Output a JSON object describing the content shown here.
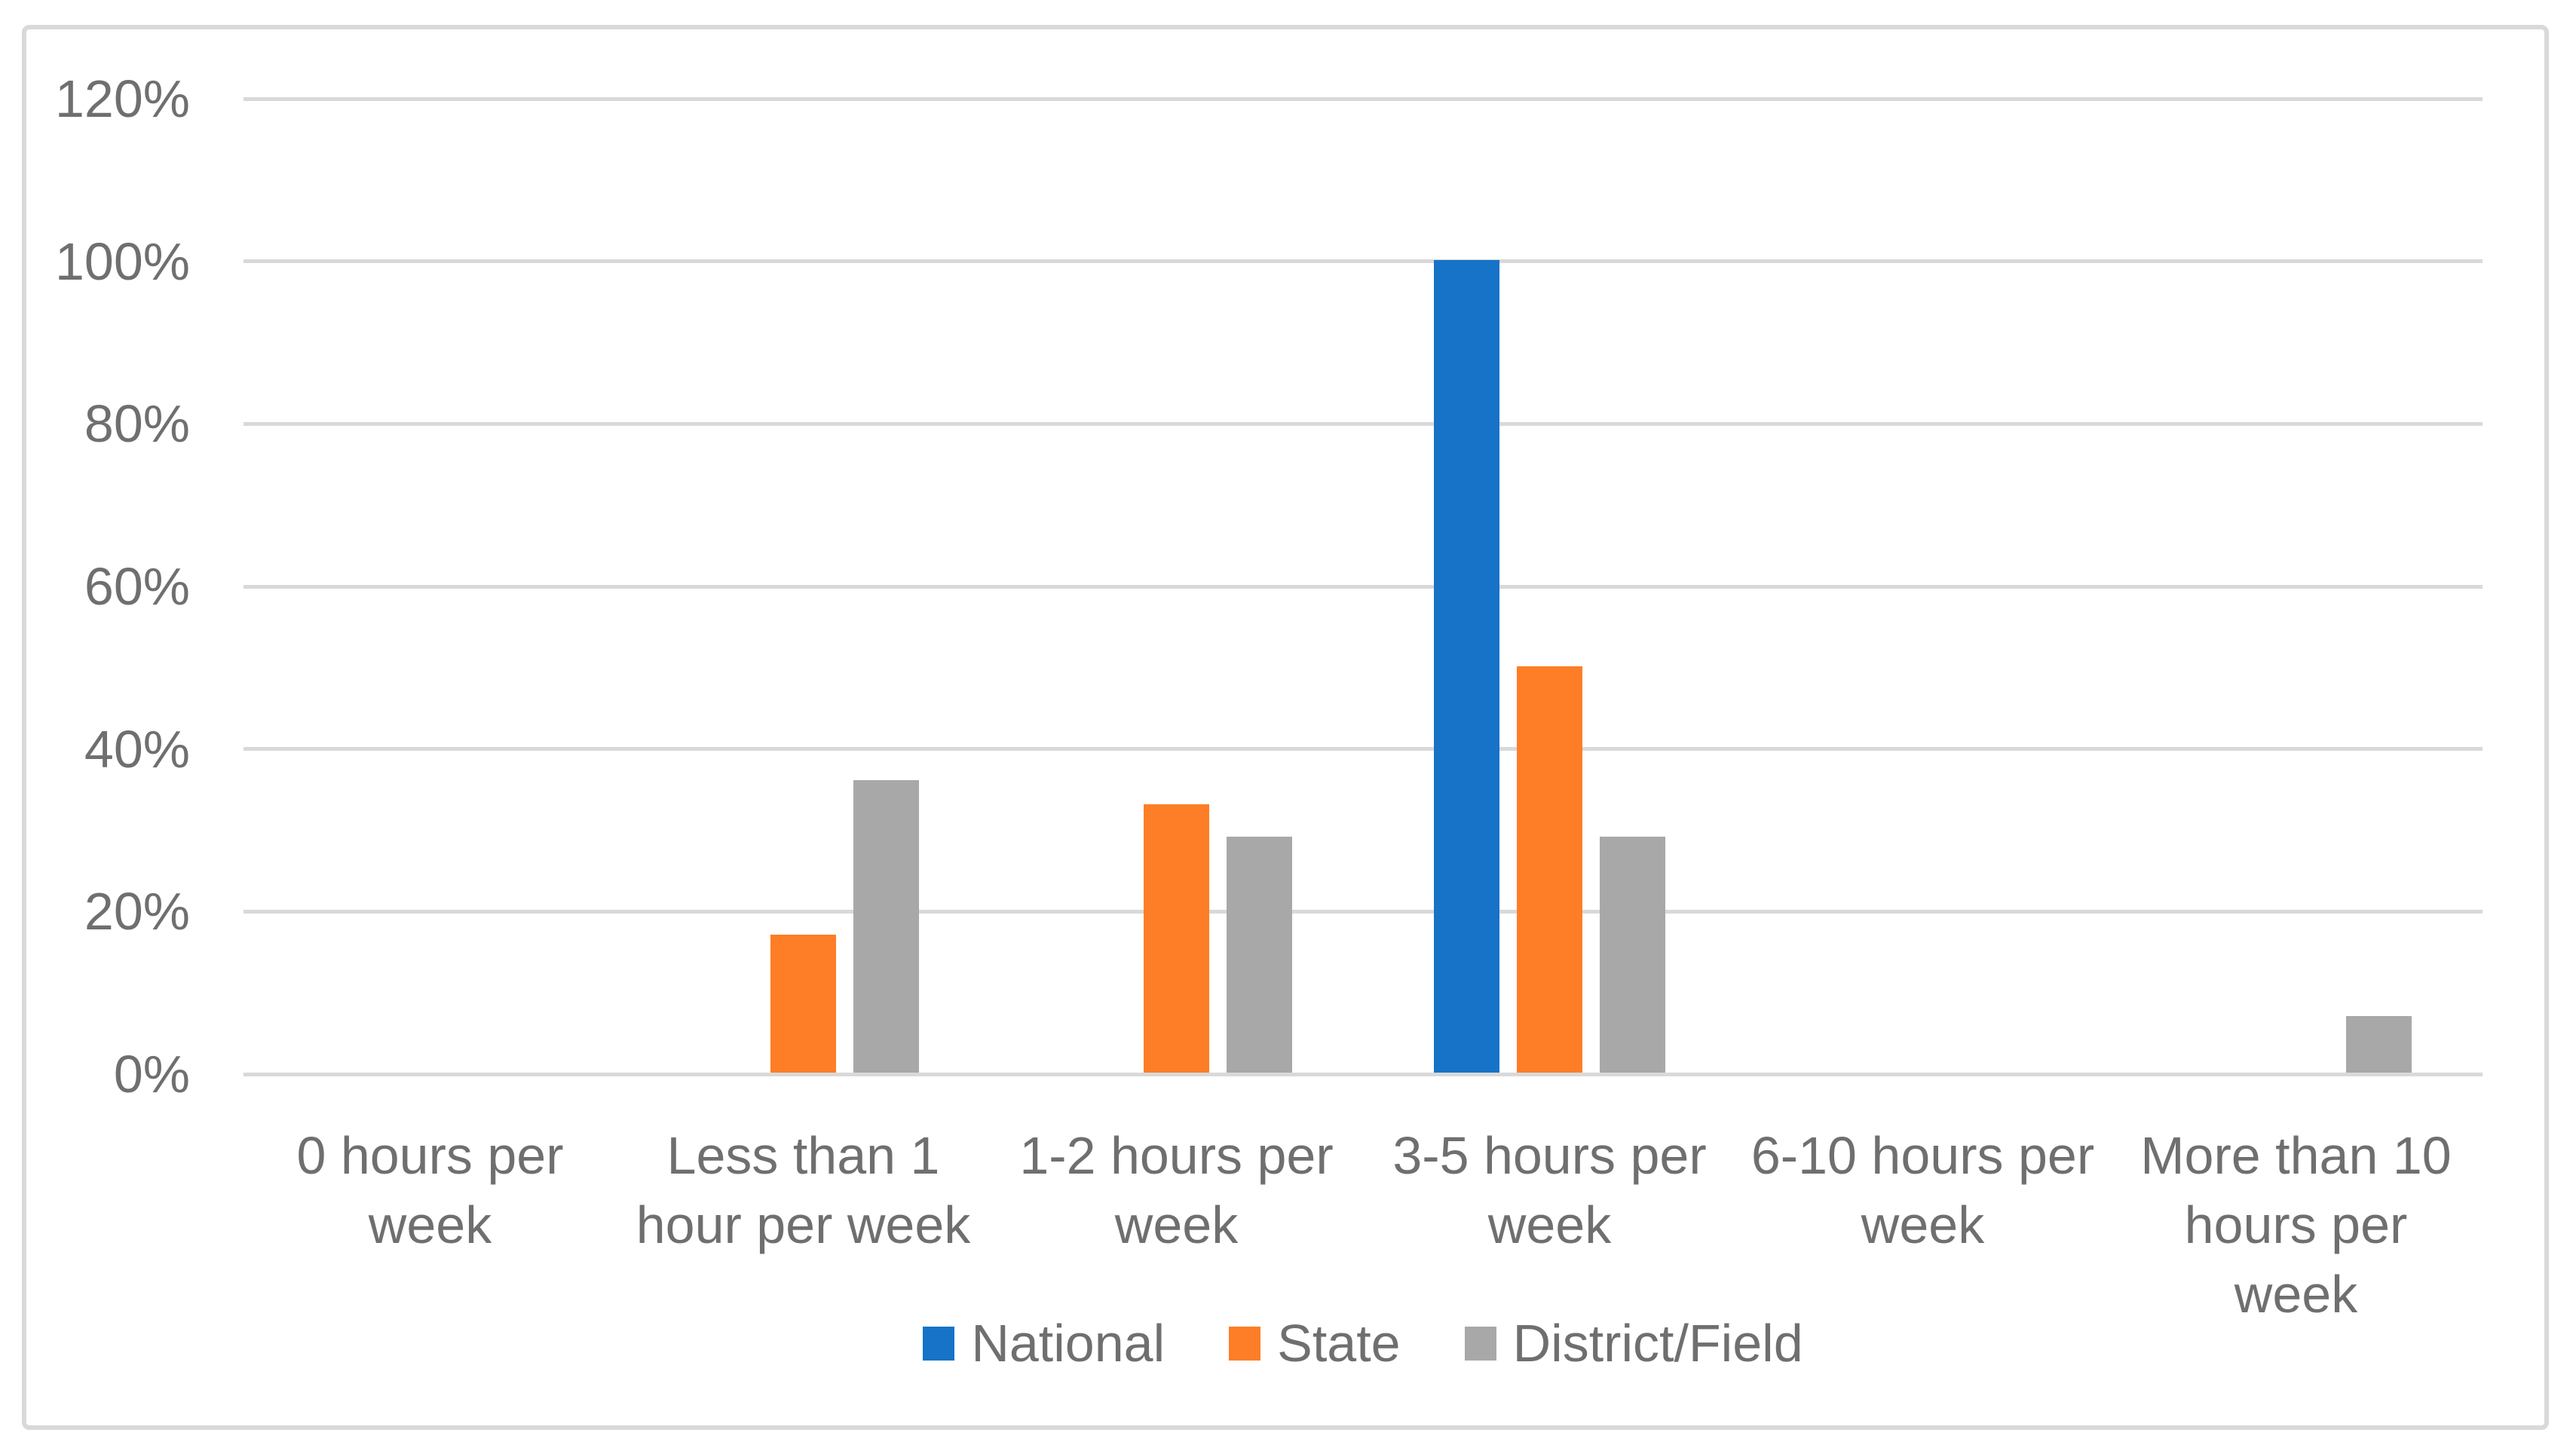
{
  "chart_data": {
    "type": "bar",
    "title": "",
    "categories": [
      "0 hours per week",
      "Less than 1 hour per week",
      "1-2 hours per week",
      "3-5 hours per week",
      "6-10 hours per week",
      "More than 10 hours per week"
    ],
    "series": [
      {
        "name": "National",
        "color": "#1673C8",
        "values": [
          0,
          0,
          0,
          100,
          0,
          0
        ]
      },
      {
        "name": "State",
        "color": "#FD7E26",
        "values": [
          0,
          17,
          33,
          50,
          0,
          0
        ]
      },
      {
        "name": "District/Field",
        "color": "#A8A8A8",
        "values": [
          0,
          36,
          29,
          29,
          0,
          7
        ]
      }
    ],
    "xlabel": "",
    "ylabel": "",
    "y_axis": {
      "min": 0,
      "max": 120,
      "tick_step": 20,
      "tick_labels": [
        "0%",
        "20%",
        "40%",
        "60%",
        "80%",
        "100%",
        "120%"
      ],
      "unit": "percent"
    },
    "grid": true,
    "legend_position": "bottom-center"
  },
  "legend": {
    "items": [
      {
        "label": "National",
        "color": "#1673C8"
      },
      {
        "label": "State",
        "color": "#FD7E26"
      },
      {
        "label": "District/Field",
        "color": "#A8A8A8"
      }
    ]
  },
  "colors": {
    "background": "#FFFFFF",
    "frame_border": "#D9D9D9",
    "gridline": "#D9D9D9",
    "axis_text": "#6F6F6F"
  }
}
